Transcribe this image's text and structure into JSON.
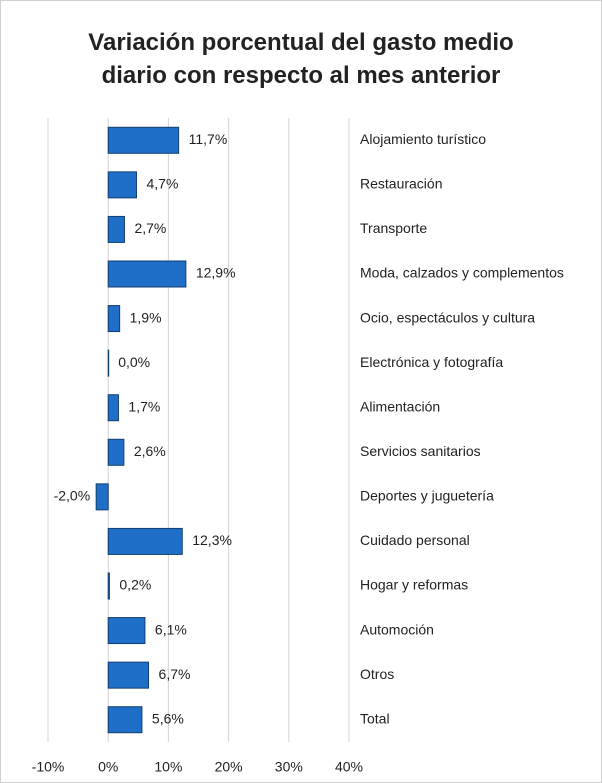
{
  "chart_data": {
    "type": "bar",
    "orientation": "horizontal",
    "title": "Variación porcentual del gasto medio diario con respecto al mes anterior",
    "categories": [
      "Alojamiento turístico",
      "Restauración",
      "Transporte",
      "Moda, calzados y complementos",
      "Ocio, espectáculos y cultura",
      "Electrónica y fotografía",
      "Alimentación",
      "Servicios sanitarios",
      "Deportes y juguetería",
      "Cuidado personal",
      "Hogar y reformas",
      "Automoción",
      "Otros",
      "Total"
    ],
    "values": [
      11.7,
      4.7,
      2.7,
      12.9,
      1.9,
      0.0,
      1.7,
      2.6,
      -2.0,
      12.3,
      0.2,
      6.1,
      6.7,
      5.6
    ],
    "value_labels": [
      "11,7%",
      "4,7%",
      "2,7%",
      "12,9%",
      "1,9%",
      "0,0%",
      "1,7%",
      "2,6%",
      "-2,0%",
      "12,3%",
      "0,2%",
      "6,1%",
      "6,7%",
      "5,6%"
    ],
    "color": "#1f6fc8",
    "xlim": [
      -10,
      40
    ],
    "xticks": [
      {
        "value": -10,
        "label": "-10%"
      },
      {
        "value": 0,
        "label": "0%"
      },
      {
        "value": 10,
        "label": "10%"
      },
      {
        "value": 20,
        "label": "20%"
      },
      {
        "value": 30,
        "label": "30%"
      },
      {
        "value": 40,
        "label": "40%"
      }
    ],
    "grid": true
  }
}
